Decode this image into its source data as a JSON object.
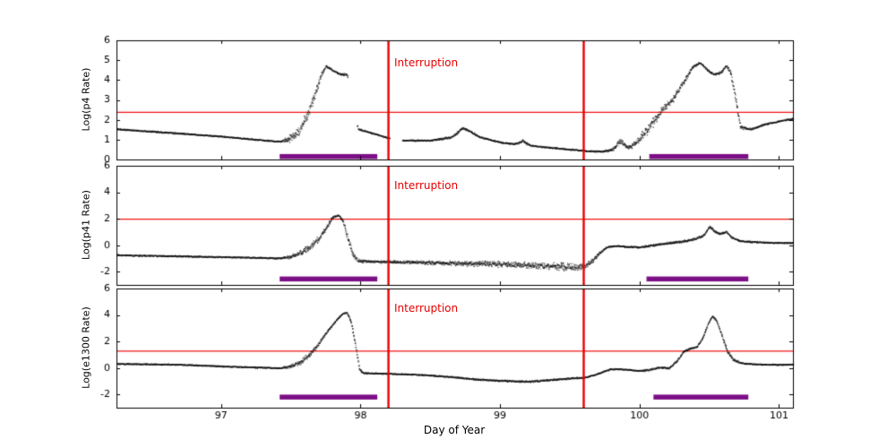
{
  "chart_data": {
    "type": "scatter",
    "title": "",
    "xlabel": "Day of Year",
    "xlim": [
      96.25,
      101.1
    ],
    "x_ticks": [
      97,
      98,
      99,
      100,
      101
    ],
    "interruption_label": "Interruption",
    "interruption_x": [
      98.2,
      99.6
    ],
    "colors": {
      "points": "#141414",
      "threshold_line": "#f01414",
      "interruption_line": "#e80000",
      "bar": "#7c0f86",
      "axis": "#000000"
    },
    "panels": [
      {
        "name": "p4",
        "ylabel": "Log(p4 Rate)",
        "ylim": [
          0,
          6
        ],
        "yticks": [
          0,
          1,
          2,
          3,
          4,
          5,
          6
        ],
        "threshold": 2.4,
        "bar_y": 0.15,
        "bars": [
          [
            97.42,
            98.12
          ],
          [
            100.07,
            100.78
          ]
        ],
        "gaps": [
          [
            97.905,
            97.972
          ],
          [
            98.205,
            98.295
          ]
        ],
        "series": [
          [
            96.25,
            1.55,
            0.05
          ],
          [
            96.6,
            1.38,
            0.05
          ],
          [
            97.0,
            1.18,
            0.04
          ],
          [
            97.25,
            1.02,
            0.04
          ],
          [
            97.42,
            0.92,
            0.05
          ],
          [
            97.5,
            1.1,
            0.28
          ],
          [
            97.56,
            1.5,
            0.32
          ],
          [
            97.62,
            2.3,
            0.35
          ],
          [
            97.67,
            3.3,
            0.3
          ],
          [
            97.72,
            4.35,
            0.15
          ],
          [
            97.75,
            4.72,
            0.08
          ],
          [
            97.8,
            4.5,
            0.07
          ],
          [
            97.85,
            4.32,
            0.07
          ],
          [
            97.9,
            4.3,
            0.12
          ],
          [
            97.98,
            1.55,
            0.07
          ],
          [
            98.1,
            1.3,
            0.05
          ],
          [
            98.2,
            1.1,
            0.05
          ],
          [
            98.3,
            0.98,
            0.05
          ],
          [
            98.5,
            0.98,
            0.05
          ],
          [
            98.65,
            1.15,
            0.07
          ],
          [
            98.73,
            1.6,
            0.1
          ],
          [
            98.78,
            1.45,
            0.08
          ],
          [
            98.85,
            1.15,
            0.06
          ],
          [
            99.0,
            0.88,
            0.05
          ],
          [
            99.1,
            0.8,
            0.06
          ],
          [
            99.16,
            0.95,
            0.1
          ],
          [
            99.22,
            0.72,
            0.05
          ],
          [
            99.35,
            0.62,
            0.05
          ],
          [
            99.5,
            0.52,
            0.05
          ],
          [
            99.62,
            0.45,
            0.05
          ],
          [
            99.72,
            0.42,
            0.06
          ],
          [
            99.8,
            0.5,
            0.1
          ],
          [
            99.86,
            0.95,
            0.22
          ],
          [
            99.92,
            0.6,
            0.12
          ],
          [
            100.0,
            1.05,
            0.3
          ],
          [
            100.08,
            1.8,
            0.35
          ],
          [
            100.16,
            2.5,
            0.3
          ],
          [
            100.24,
            3.1,
            0.22
          ],
          [
            100.32,
            4.0,
            0.14
          ],
          [
            100.38,
            4.7,
            0.09
          ],
          [
            100.43,
            4.9,
            0.07
          ],
          [
            100.48,
            4.55,
            0.07
          ],
          [
            100.53,
            4.3,
            0.07
          ],
          [
            100.58,
            4.4,
            0.08
          ],
          [
            100.62,
            4.75,
            0.09
          ],
          [
            100.65,
            4.4,
            0.12
          ],
          [
            100.68,
            3.3,
            0.35
          ],
          [
            100.72,
            1.65,
            0.12
          ],
          [
            100.8,
            1.55,
            0.06
          ],
          [
            100.9,
            1.8,
            0.05
          ],
          [
            101.0,
            1.95,
            0.05
          ],
          [
            101.1,
            2.08,
            0.05
          ]
        ]
      },
      {
        "name": "p41",
        "ylabel": "Log(p41 Rate)",
        "ylim": [
          -3,
          6
        ],
        "yticks": [
          -2,
          0,
          2,
          4,
          6
        ],
        "threshold": 2.0,
        "bar_y": -2.55,
        "bars": [
          [
            97.42,
            98.12
          ],
          [
            100.05,
            100.78
          ]
        ],
        "gaps": [],
        "series": [
          [
            96.25,
            -0.72,
            0.07
          ],
          [
            96.7,
            -0.8,
            0.07
          ],
          [
            97.1,
            -0.88,
            0.07
          ],
          [
            97.42,
            -0.95,
            0.08
          ],
          [
            97.5,
            -0.85,
            0.22
          ],
          [
            97.58,
            -0.5,
            0.3
          ],
          [
            97.65,
            0.05,
            0.35
          ],
          [
            97.71,
            0.7,
            0.32
          ],
          [
            97.76,
            1.5,
            0.22
          ],
          [
            97.8,
            2.15,
            0.12
          ],
          [
            97.84,
            2.3,
            0.08
          ],
          [
            97.87,
            1.9,
            0.18
          ],
          [
            97.9,
            0.8,
            0.35
          ],
          [
            97.94,
            -0.6,
            0.35
          ],
          [
            97.98,
            -1.15,
            0.18
          ],
          [
            98.1,
            -1.2,
            0.12
          ],
          [
            98.3,
            -1.25,
            0.16
          ],
          [
            98.6,
            -1.3,
            0.22
          ],
          [
            98.9,
            -1.38,
            0.28
          ],
          [
            99.2,
            -1.48,
            0.32
          ],
          [
            99.45,
            -1.58,
            0.35
          ],
          [
            99.6,
            -1.62,
            0.35
          ],
          [
            99.66,
            -1.15,
            0.22
          ],
          [
            99.71,
            -0.55,
            0.15
          ],
          [
            99.76,
            -0.12,
            0.1
          ],
          [
            99.82,
            -0.02,
            0.07
          ],
          [
            99.9,
            -0.08,
            0.07
          ],
          [
            100.0,
            -0.12,
            0.09
          ],
          [
            100.1,
            0.05,
            0.12
          ],
          [
            100.2,
            0.18,
            0.12
          ],
          [
            100.3,
            0.3,
            0.13
          ],
          [
            100.4,
            0.52,
            0.13
          ],
          [
            100.46,
            0.8,
            0.13
          ],
          [
            100.5,
            1.45,
            0.13
          ],
          [
            100.54,
            1.05,
            0.12
          ],
          [
            100.58,
            0.9,
            0.1
          ],
          [
            100.62,
            1.05,
            0.1
          ],
          [
            100.66,
            0.6,
            0.1
          ],
          [
            100.72,
            0.35,
            0.08
          ],
          [
            100.8,
            0.28,
            0.07
          ],
          [
            100.95,
            0.22,
            0.06
          ],
          [
            101.1,
            0.2,
            0.06
          ]
        ]
      },
      {
        "name": "e1300",
        "ylabel": "Log(e1300 Rate)",
        "ylim": [
          -3,
          6
        ],
        "yticks": [
          -2,
          0,
          2,
          4,
          6
        ],
        "threshold": 1.3,
        "bar_y": -2.2,
        "bars": [
          [
            97.42,
            98.12
          ],
          [
            100.1,
            100.78
          ]
        ],
        "gaps": [],
        "series": [
          [
            96.25,
            0.35,
            0.06
          ],
          [
            96.7,
            0.28,
            0.06
          ],
          [
            97.1,
            0.12,
            0.06
          ],
          [
            97.42,
            0.02,
            0.06
          ],
          [
            97.5,
            0.15,
            0.2
          ],
          [
            97.57,
            0.5,
            0.25
          ],
          [
            97.63,
            1.0,
            0.25
          ],
          [
            97.7,
            1.9,
            0.18
          ],
          [
            97.76,
            2.8,
            0.12
          ],
          [
            97.82,
            3.6,
            0.08
          ],
          [
            97.87,
            4.15,
            0.06
          ],
          [
            97.9,
            4.2,
            0.06
          ],
          [
            97.93,
            3.5,
            0.12
          ],
          [
            97.96,
            1.8,
            0.25
          ],
          [
            97.99,
            -0.1,
            0.15
          ],
          [
            98.02,
            -0.35,
            0.08
          ],
          [
            98.2,
            -0.4,
            0.06
          ],
          [
            98.45,
            -0.5,
            0.06
          ],
          [
            98.65,
            -0.65,
            0.08
          ],
          [
            98.85,
            -0.85,
            0.1
          ],
          [
            99.05,
            -0.95,
            0.1
          ],
          [
            99.2,
            -1.0,
            0.1
          ],
          [
            99.35,
            -0.88,
            0.09
          ],
          [
            99.5,
            -0.75,
            0.08
          ],
          [
            99.6,
            -0.7,
            0.08
          ],
          [
            99.67,
            -0.52,
            0.08
          ],
          [
            99.73,
            -0.28,
            0.07
          ],
          [
            99.79,
            -0.05,
            0.06
          ],
          [
            99.86,
            -0.06,
            0.06
          ],
          [
            99.93,
            -0.12,
            0.06
          ],
          [
            100.0,
            -0.18,
            0.08
          ],
          [
            100.06,
            -0.12,
            0.12
          ],
          [
            100.11,
            0.0,
            0.1
          ],
          [
            100.16,
            0.08,
            0.09
          ],
          [
            100.21,
            0.02,
            0.09
          ],
          [
            100.27,
            0.6,
            0.12
          ],
          [
            100.31,
            1.25,
            0.1
          ],
          [
            100.36,
            1.5,
            0.08
          ],
          [
            100.41,
            1.62,
            0.09
          ],
          [
            100.45,
            2.3,
            0.1
          ],
          [
            100.49,
            3.4,
            0.08
          ],
          [
            100.52,
            3.95,
            0.06
          ],
          [
            100.55,
            3.6,
            0.1
          ],
          [
            100.59,
            2.4,
            0.15
          ],
          [
            100.63,
            1.2,
            0.18
          ],
          [
            100.67,
            0.65,
            0.14
          ],
          [
            100.73,
            0.38,
            0.09
          ],
          [
            100.85,
            0.3,
            0.06
          ],
          [
            101.0,
            0.27,
            0.06
          ],
          [
            101.1,
            0.3,
            0.06
          ]
        ]
      }
    ]
  }
}
